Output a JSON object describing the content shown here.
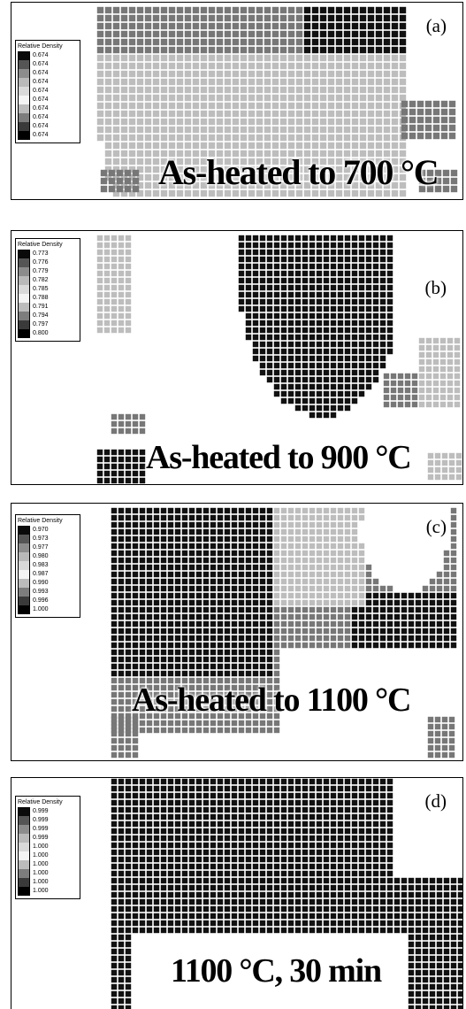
{
  "panels": [
    {
      "label": "(a)",
      "caption": "As-heated to 700 °C",
      "legend_title": "Relative Density",
      "legend_values": [
        "0.674",
        "0.674",
        "0.674",
        "0.674",
        "0.674",
        "0.674",
        "0.674",
        "0.674",
        "0.674",
        "0.674"
      ]
    },
    {
      "label": "(b)",
      "caption": "As-heated to 900 °C",
      "legend_title": "Relative Density",
      "legend_values": [
        "0.773",
        "0.776",
        "0.779",
        "0.782",
        "0.785",
        "0.788",
        "0.791",
        "0.794",
        "0.797",
        "0.800"
      ]
    },
    {
      "label": "(c)",
      "caption": "As-heated to 1100 °C",
      "legend_title": "Relative Density",
      "legend_values": [
        "0.970",
        "0.973",
        "0.977",
        "0.980",
        "0.983",
        "0.987",
        "0.990",
        "0.993",
        "0.996",
        "1.000"
      ]
    },
    {
      "label": "(d)",
      "caption": "1100 °C, 30 min",
      "legend_title": "Relative Density",
      "legend_values": [
        "0.999",
        "0.999",
        "0.999",
        "0.999",
        "1.000",
        "1.000",
        "1.000",
        "1.000",
        "1.000",
        "1.000"
      ]
    }
  ],
  "colors": {
    "legend_scale": [
      "#0a0a0a",
      "#555555",
      "#8c8c8c",
      "#b9b9b9",
      "#d9d9d9",
      "#f4f4f4",
      "#bcbcbc",
      "#7d7d7d",
      "#3a3a3a",
      "#000000"
    ],
    "mesh_dark": "#111111",
    "mesh_mid": "#777777",
    "mesh_light": "#bdbdbd"
  }
}
